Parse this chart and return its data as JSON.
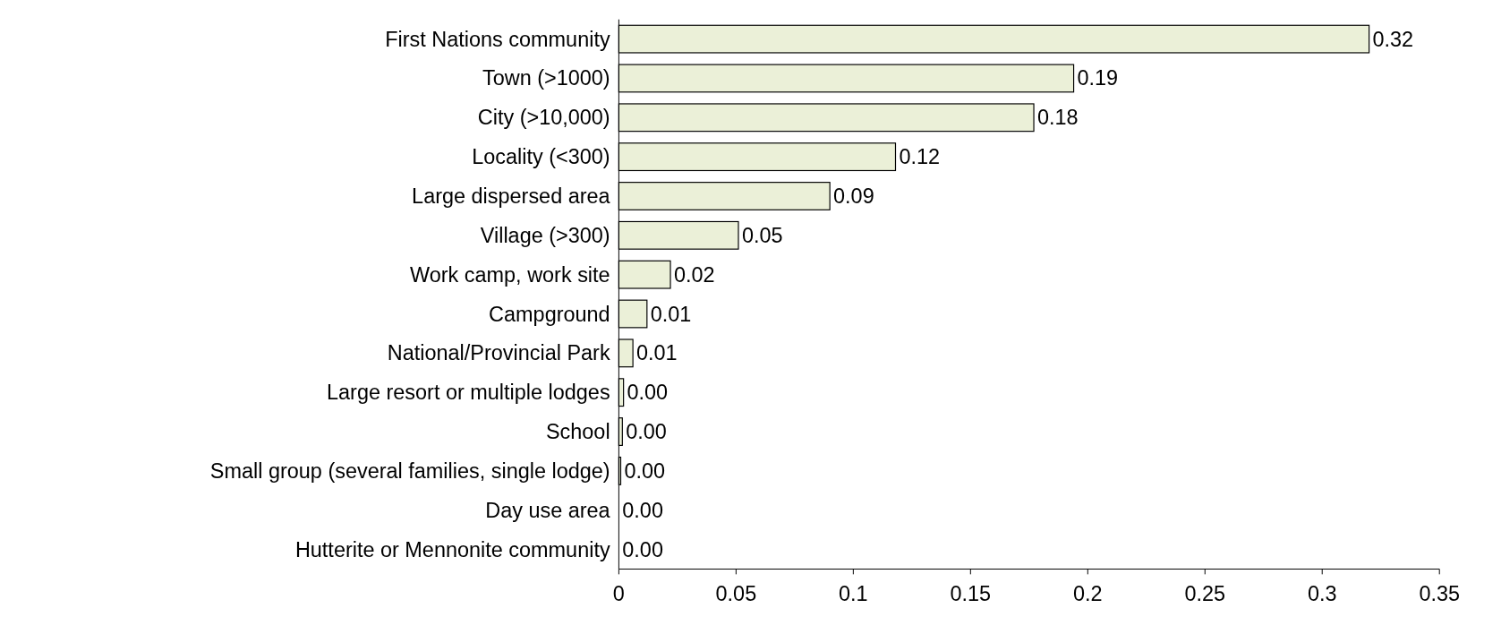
{
  "chart_data": {
    "type": "bar",
    "orientation": "horizontal",
    "categories": [
      "First Nations community",
      "Town (>1000)",
      "City (>10,000)",
      "Locality (<300)",
      "Large dispersed area",
      "Village (>300)",
      "Work camp, work site",
      "Campground",
      "National/Provincial Park",
      "Large resort or multiple lodges",
      "School",
      "Small group (several families, single lodge)",
      "Day use area",
      "Hutterite or Mennonite community"
    ],
    "values": [
      0.32,
      0.194,
      0.177,
      0.118,
      0.09,
      0.051,
      0.022,
      0.012,
      0.006,
      0.002,
      0.0015,
      0.0008,
      0,
      0
    ],
    "value_labels": [
      "0.32",
      "0.19",
      "0.18",
      "0.12",
      "0.09",
      "0.05",
      "0.02",
      "0.01",
      "0.01",
      "0.00",
      "0.00",
      "0.00",
      "0.00",
      "0.00"
    ],
    "color": "#ebf0d8",
    "xlim": [
      0,
      0.35
    ],
    "xticks": [
      0,
      0.05,
      0.1,
      0.15,
      0.2,
      0.25,
      0.3,
      0.35
    ],
    "grid": false
  }
}
